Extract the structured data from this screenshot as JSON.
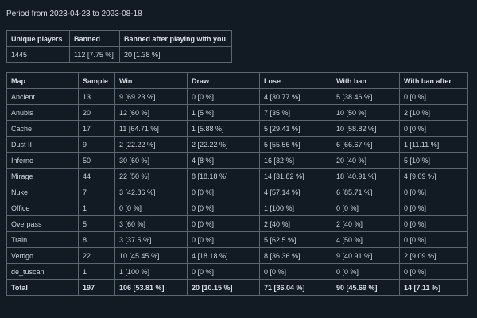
{
  "period": "Period from 2023-04-23 to 2023-08-18",
  "summary": {
    "headers": [
      "Unique players",
      "Banned",
      "Banned after playing with you"
    ],
    "values": [
      "1445",
      "112 [7.75 %]",
      "20 [1.38 %]"
    ]
  },
  "maps": {
    "headers": [
      "Map",
      "Sample",
      "Win",
      "Draw",
      "Lose",
      "With ban",
      "With ban after"
    ],
    "rows": [
      [
        "Ancient",
        "13",
        "9 [69.23 %]",
        "0 [0 %]",
        "4 [30.77 %]",
        "5 [38.46 %]",
        "0 [0 %]"
      ],
      [
        "Anubis",
        "20",
        "12 [60 %]",
        "1 [5 %]",
        "7 [35 %]",
        "10 [50 %]",
        "2 [10 %]"
      ],
      [
        "Cache",
        "17",
        "11 [64.71 %]",
        "1 [5.88 %]",
        "5 [29.41 %]",
        "10 [58.82 %]",
        "0 [0 %]"
      ],
      [
        "Dust II",
        "9",
        "2 [22.22 %]",
        "2 [22.22 %]",
        "5 [55.56 %]",
        "6 [66.67 %]",
        "1 [11.11 %]"
      ],
      [
        "Inferno",
        "50",
        "30 [60 %]",
        "4 [8 %]",
        "16 [32 %]",
        "20 [40 %]",
        "5 [10 %]"
      ],
      [
        "Mirage",
        "44",
        "22 [50 %]",
        "8 [18.18 %]",
        "14 [31.82 %]",
        "18 [40.91 %]",
        "4 [9.09 %]"
      ],
      [
        "Nuke",
        "7",
        "3 [42.86 %]",
        "0 [0 %]",
        "4 [57.14 %]",
        "6 [85.71 %]",
        "0 [0 %]"
      ],
      [
        "Office",
        "1",
        "0 [0 %]",
        "0 [0 %]",
        "1 [100 %]",
        "0 [0 %]",
        "0 [0 %]"
      ],
      [
        "Overpass",
        "5",
        "3 [60 %]",
        "0 [0 %]",
        "2 [40 %]",
        "2 [40 %]",
        "0 [0 %]"
      ],
      [
        "Train",
        "8",
        "3 [37.5 %]",
        "0 [0 %]",
        "5 [62.5 %]",
        "4 [50 %]",
        "0 [0 %]"
      ],
      [
        "Vertigo",
        "22",
        "10 [45.45 %]",
        "4 [18.18 %]",
        "8 [36.36 %]",
        "9 [40.91 %]",
        "2 [9.09 %]"
      ],
      [
        "de_tuscan",
        "1",
        "1 [100 %]",
        "0 [0 %]",
        "0 [0 %]",
        "0 [0 %]",
        "0 [0 %]"
      ]
    ],
    "total": [
      "Total",
      "197",
      "106 [53.81 %]",
      "20 [10.15 %]",
      "71 [36.04 %]",
      "90 [45.69 %]",
      "14 [7.11 %]"
    ]
  }
}
